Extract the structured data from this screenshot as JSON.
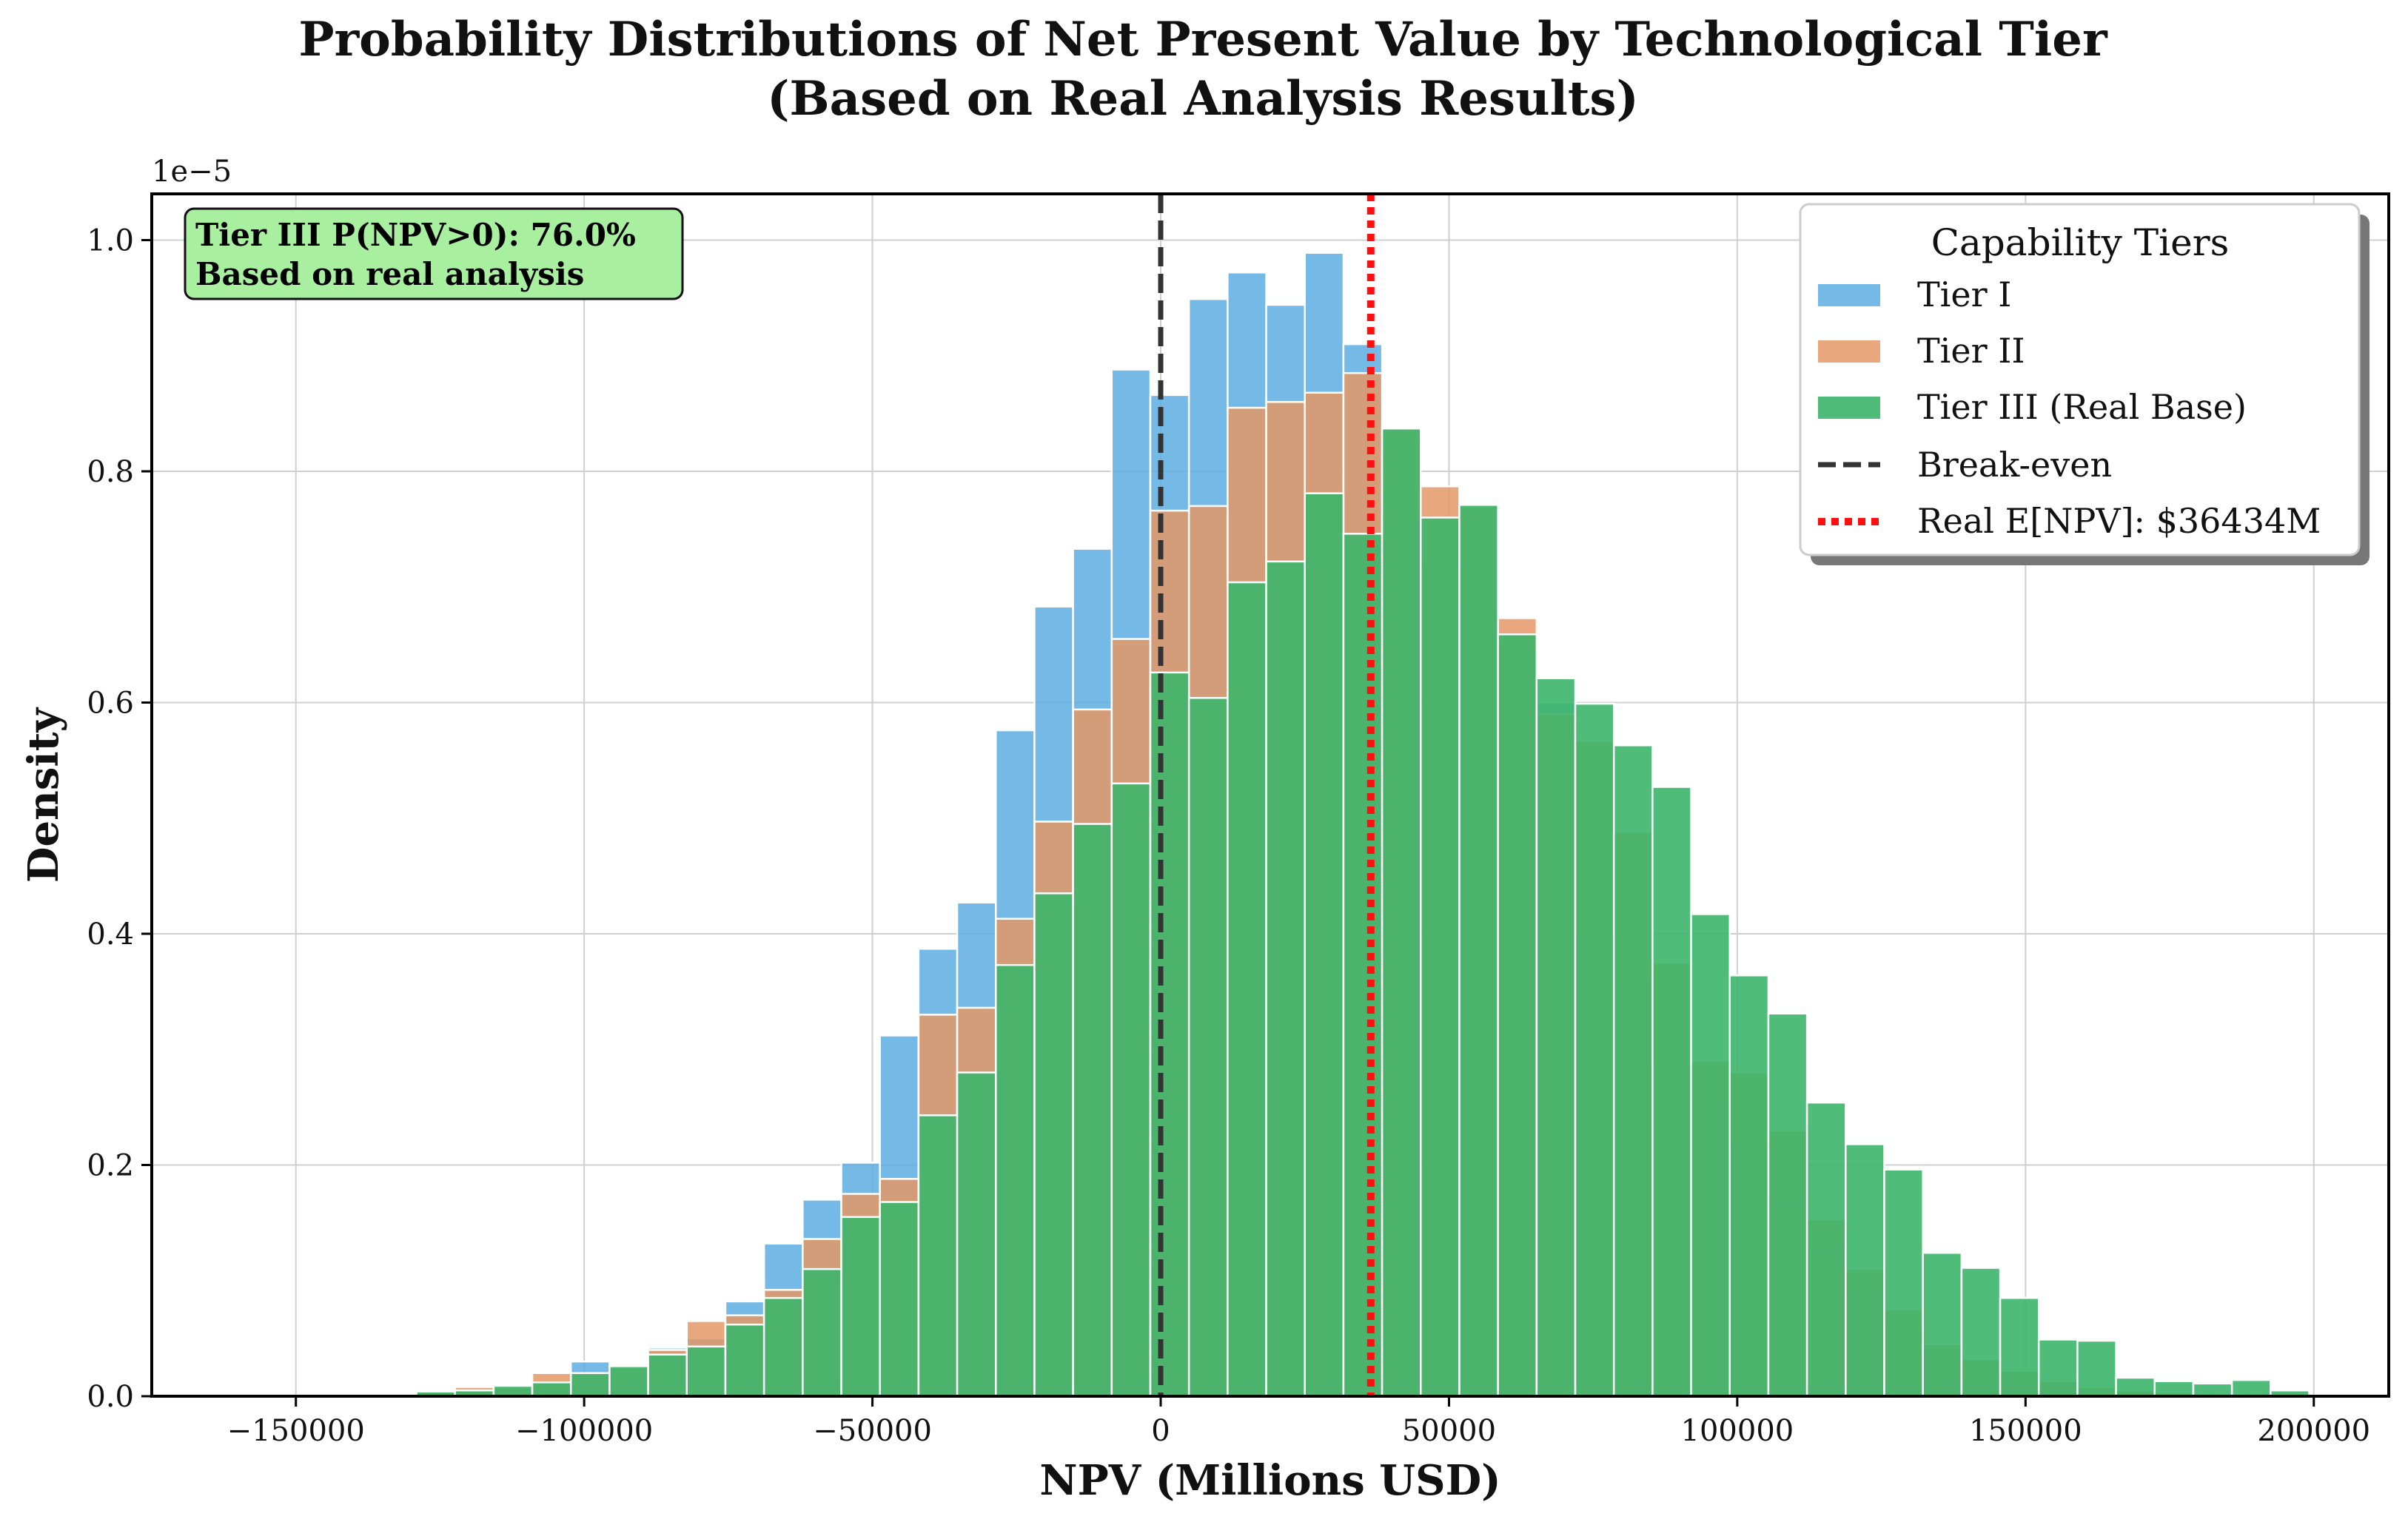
{
  "chart_data": {
    "type": "bar",
    "title": "Probability Distributions of Net Present Value by Technological Tier",
    "subtitle": "(Based on Real Analysis Results)",
    "xlabel": "NPV (Millions USD)",
    "ylabel": "Density",
    "y_scale_label": "1e−5",
    "xlim": [
      -175000,
      213000
    ],
    "ylim": [
      0,
      1.04
    ],
    "x_ticks": [
      -150000,
      -100000,
      -50000,
      0,
      50000,
      100000,
      150000,
      200000
    ],
    "x_tick_labels": [
      "−150000",
      "−100000",
      "−50000",
      "0",
      "50000",
      "100000",
      "150000",
      "200000"
    ],
    "y_ticks": [
      0,
      0.2,
      0.4,
      0.6,
      0.8,
      1.0
    ],
    "y_tick_labels": [
      "0.0",
      "0.2",
      "0.4",
      "0.6",
      "0.8",
      "1.0"
    ],
    "grid": true,
    "legend_position": "top-right",
    "legend_title": "Capability Tiers",
    "series": [
      {
        "name": "Tier I",
        "color": "#5DADE2",
        "bin_width": 6700,
        "bins": [
          [
            -142500,
            0.002
          ],
          [
            -135800,
            0.003
          ],
          [
            -129100,
            0.005
          ],
          [
            -122400,
            0.005
          ],
          [
            -115700,
            0.008
          ],
          [
            -109000,
            0.013
          ],
          [
            -102300,
            0.03
          ],
          [
            -95600,
            0.025
          ],
          [
            -88900,
            0.042
          ],
          [
            -82200,
            0.05
          ],
          [
            -75500,
            0.082
          ],
          [
            -68800,
            0.132
          ],
          [
            -62100,
            0.17
          ],
          [
            -55400,
            0.202
          ],
          [
            -48700,
            0.312
          ],
          [
            -42000,
            0.387
          ],
          [
            -35300,
            0.427
          ],
          [
            -28600,
            0.576
          ],
          [
            -21900,
            0.683
          ],
          [
            -15200,
            0.733
          ],
          [
            -8500,
            0.888
          ],
          [
            -1800,
            0.866
          ],
          [
            4900,
            0.949
          ],
          [
            11600,
            0.972
          ],
          [
            18300,
            0.944
          ],
          [
            25000,
            0.989
          ],
          [
            31700,
            0.91
          ],
          [
            38400,
            0.76
          ],
          [
            45100,
            0.72
          ],
          [
            51800,
            0.68
          ],
          [
            58500,
            0.65
          ],
          [
            65200,
            0.6
          ],
          [
            71900,
            0.4
          ],
          [
            78600,
            0.36
          ],
          [
            85300,
            0.29
          ],
          [
            92000,
            0.26
          ],
          [
            98700,
            0.22
          ],
          [
            105400,
            0.17
          ],
          [
            112100,
            0.13
          ],
          [
            118800,
            0.09
          ],
          [
            125500,
            0.06
          ],
          [
            132200,
            0.04
          ],
          [
            138900,
            0.03
          ],
          [
            145600,
            0.02
          ],
          [
            152300,
            0.015
          ],
          [
            159000,
            0.01
          ],
          [
            165700,
            0.006
          ],
          [
            172400,
            0.004
          ],
          [
            179100,
            0.002
          ]
        ]
      },
      {
        "name": "Tier II",
        "color": "#E59866",
        "bin_width": 6700,
        "bins": [
          [
            -142500,
            0.001
          ],
          [
            -135800,
            0.003
          ],
          [
            -129100,
            0.005
          ],
          [
            -122400,
            0.008
          ],
          [
            -115700,
            0.008
          ],
          [
            -109000,
            0.02
          ],
          [
            -102300,
            0.02
          ],
          [
            -95600,
            0.025
          ],
          [
            -88900,
            0.04
          ],
          [
            -82200,
            0.065
          ],
          [
            -75500,
            0.07
          ],
          [
            -68800,
            0.092
          ],
          [
            -62100,
            0.136
          ],
          [
            -55400,
            0.175
          ],
          [
            -48700,
            0.188
          ],
          [
            -42000,
            0.33
          ],
          [
            -35300,
            0.336
          ],
          [
            -28600,
            0.413
          ],
          [
            -21900,
            0.497
          ],
          [
            -15200,
            0.594
          ],
          [
            -8500,
            0.655
          ],
          [
            -1800,
            0.766
          ],
          [
            4900,
            0.77
          ],
          [
            11600,
            0.855
          ],
          [
            18300,
            0.86
          ],
          [
            25000,
            0.868
          ],
          [
            31700,
            0.885
          ],
          [
            38400,
            0.838
          ],
          [
            45100,
            0.787
          ],
          [
            51800,
            0.77
          ],
          [
            58500,
            0.673
          ],
          [
            65200,
            0.59
          ],
          [
            71900,
            0.567
          ],
          [
            78600,
            0.488
          ],
          [
            85300,
            0.375
          ],
          [
            92000,
            0.29
          ],
          [
            98700,
            0.28
          ],
          [
            105400,
            0.23
          ],
          [
            112100,
            0.153
          ],
          [
            118800,
            0.11
          ],
          [
            125500,
            0.075
          ],
          [
            132200,
            0.045
          ],
          [
            138900,
            0.032
          ],
          [
            145600,
            0.022
          ],
          [
            152300,
            0.013
          ],
          [
            159000,
            0.008
          ],
          [
            165700,
            0.005
          ],
          [
            172400,
            0.003
          ],
          [
            179100,
            0.002
          ]
        ]
      },
      {
        "name": "Tier III (Real Base)",
        "color": "#3CB66A",
        "bin_width": 6700,
        "bins": [
          [
            -142500,
            0.002
          ],
          [
            -135800,
            0.002
          ],
          [
            -129100,
            0.004
          ],
          [
            -122400,
            0.005
          ],
          [
            -115700,
            0.009
          ],
          [
            -109000,
            0.012
          ],
          [
            -102300,
            0.02
          ],
          [
            -95600,
            0.026
          ],
          [
            -88900,
            0.036
          ],
          [
            -82200,
            0.043
          ],
          [
            -75500,
            0.062
          ],
          [
            -68800,
            0.085
          ],
          [
            -62100,
            0.11
          ],
          [
            -55400,
            0.155
          ],
          [
            -48700,
            0.168
          ],
          [
            -42000,
            0.243
          ],
          [
            -35300,
            0.28
          ],
          [
            -28600,
            0.373
          ],
          [
            -21900,
            0.435
          ],
          [
            -15200,
            0.495
          ],
          [
            -8500,
            0.53
          ],
          [
            -1800,
            0.626
          ],
          [
            4900,
            0.604
          ],
          [
            11600,
            0.704
          ],
          [
            18300,
            0.722
          ],
          [
            25000,
            0.781
          ],
          [
            31700,
            0.746
          ],
          [
            38400,
            0.837
          ],
          [
            45100,
            0.76
          ],
          [
            51800,
            0.771
          ],
          [
            58500,
            0.659
          ],
          [
            65200,
            0.621
          ],
          [
            71900,
            0.599
          ],
          [
            78600,
            0.563
          ],
          [
            85300,
            0.527
          ],
          [
            92000,
            0.417
          ],
          [
            98700,
            0.364
          ],
          [
            105400,
            0.331
          ],
          [
            112100,
            0.254
          ],
          [
            118800,
            0.218
          ],
          [
            125500,
            0.196
          ],
          [
            132200,
            0.124
          ],
          [
            138900,
            0.111
          ],
          [
            145600,
            0.085
          ],
          [
            152300,
            0.049
          ],
          [
            159000,
            0.048
          ],
          [
            165700,
            0.016
          ],
          [
            172400,
            0.013
          ],
          [
            179100,
            0.011
          ],
          [
            185800,
            0.014
          ],
          [
            192500,
            0.005
          ]
        ]
      }
    ],
    "reference_lines": [
      {
        "name": "Break-even",
        "x": 0,
        "color": "#333333",
        "style": "dashed"
      },
      {
        "name": "Real E[NPV]: $36434M",
        "x": 36434,
        "color": "#FF1010",
        "style": "dotted"
      }
    ],
    "annotation": {
      "lines": [
        "Tier III P(NPV>0): 76.0%",
        "Based on real analysis"
      ],
      "position": "top-left",
      "background": "#A9EFA0"
    }
  }
}
